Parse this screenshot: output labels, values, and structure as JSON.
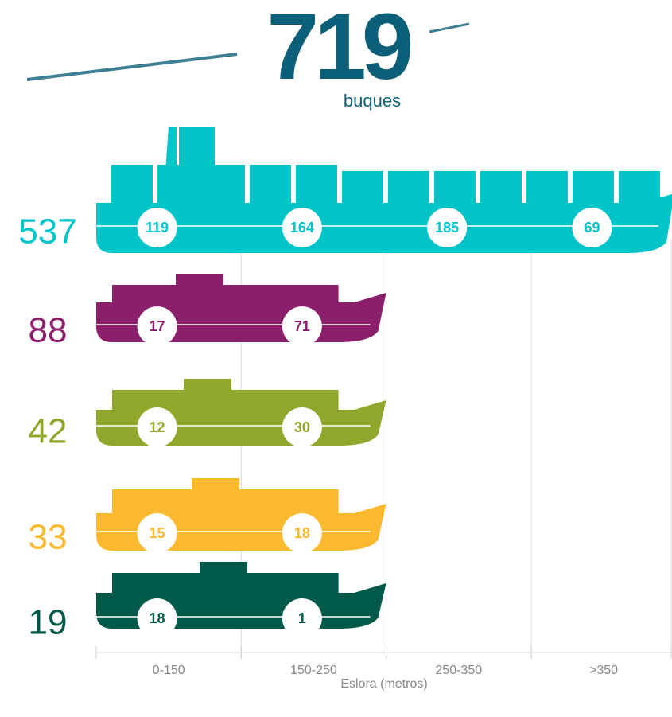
{
  "chart_data": {
    "type": "ship-bars",
    "title": "719",
    "subtitle": "buques",
    "x_label": "Eslora (metros)",
    "title_color": "#0b5f78",
    "categories": [
      "0-150",
      "150-250",
      "250-350",
      ">350"
    ],
    "series": [
      {
        "color": "#00c4c8",
        "total": 537,
        "values": [
          119,
          164,
          185,
          69
        ]
      },
      {
        "color": "#8c1f6b",
        "total": 88,
        "values": [
          17,
          71,
          null,
          null
        ]
      },
      {
        "color": "#8fa82c",
        "total": 42,
        "values": [
          12,
          30,
          null,
          null
        ]
      },
      {
        "color": "#fbb92f",
        "total": 33,
        "values": [
          15,
          18,
          null,
          null
        ]
      },
      {
        "color": "#005a4a",
        "total": 19,
        "values": [
          18,
          1,
          null,
          null
        ]
      }
    ]
  }
}
